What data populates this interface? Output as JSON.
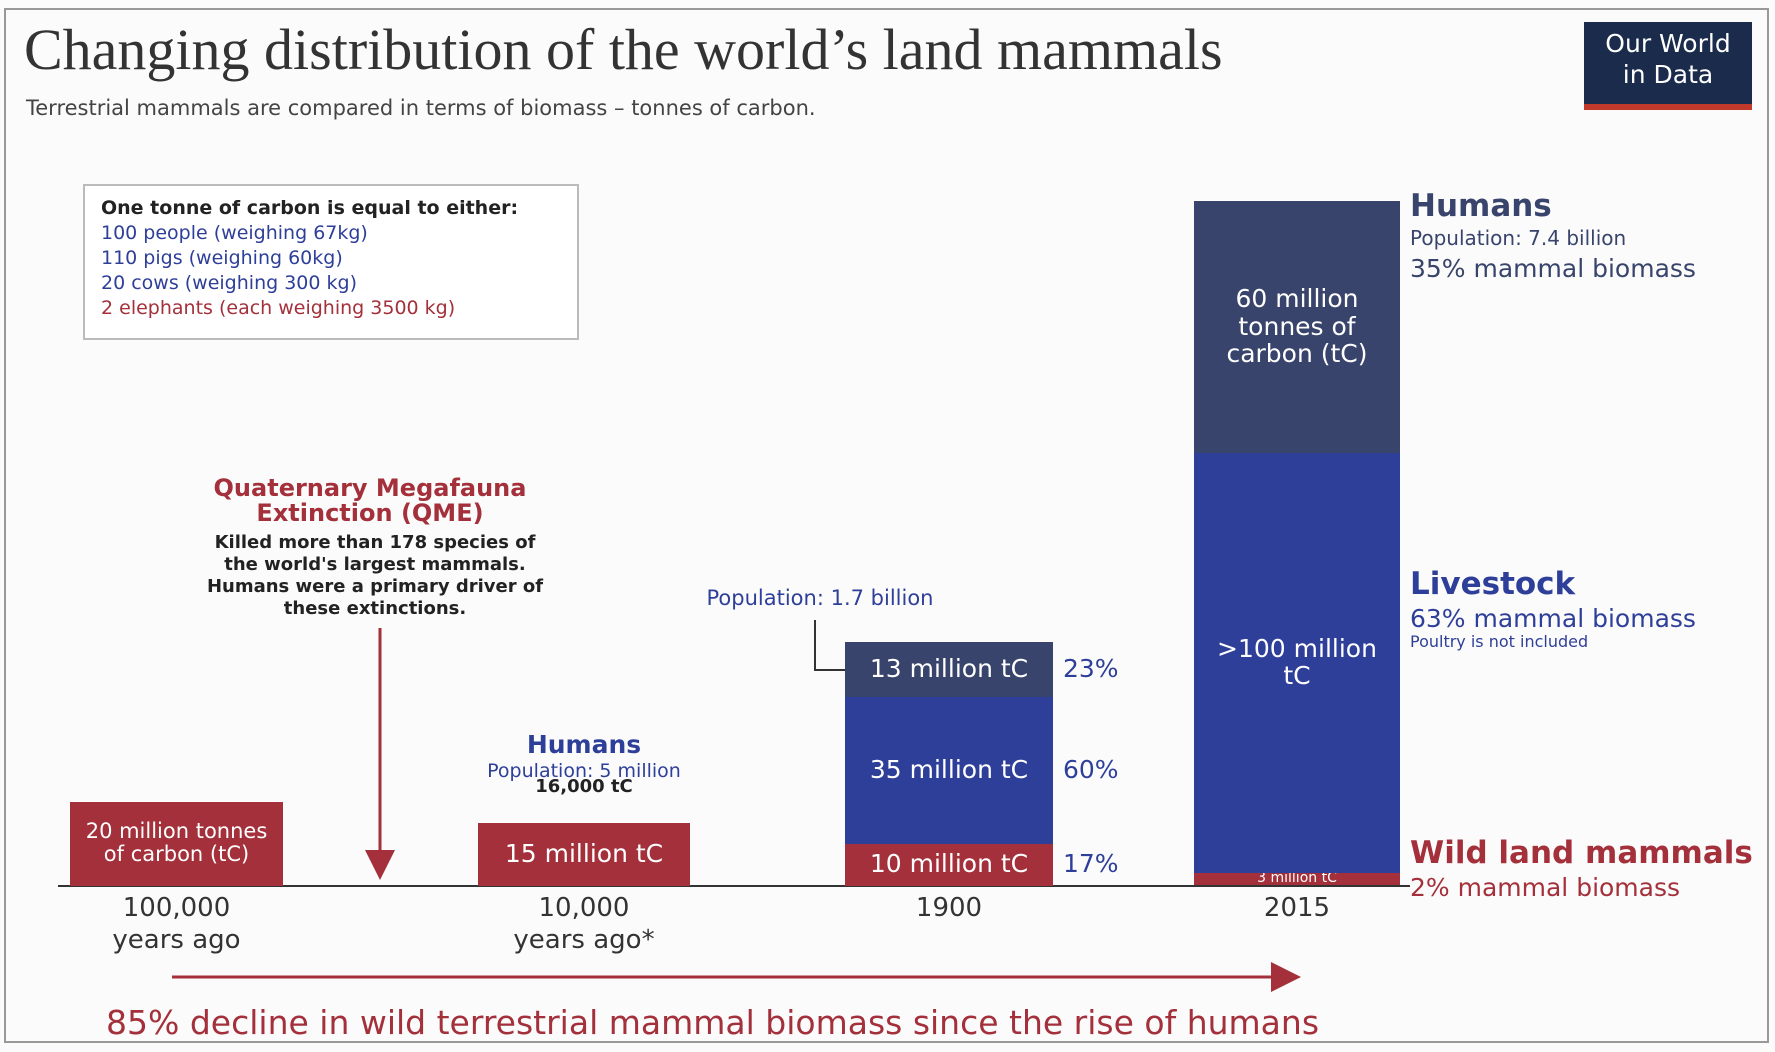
{
  "logo": [
    "Our World",
    "in Data"
  ],
  "info_box": {
    "title": "One tonne of carbon is equal to either:",
    "lines": [
      "100 people (weighing 67kg)",
      "110 pigs (weighing 60kg)",
      "20 cows (weighing 300 kg)",
      "2 elephants (each weighing 3500 kg)"
    ]
  },
  "annotations": {
    "qme_title": "Quaternary Megafauna Extinction (QME)",
    "qme_text": "Killed more than 178 species of the world's largest mammals. Humans were a primary driver of these extinctions.",
    "humans_label": "Humans",
    "population_10000": "Population: 5 million",
    "population_1900": "Population: 1.7 billion",
    "footer": "85% decline in wild terrestrial mammal biomass since the rise of humans"
  },
  "chart_data": {
    "type": "bar",
    "stacked": true,
    "title": "Changing distribution of the world’s land mammals",
    "subtitle": "Terrestrial mammals are compared in terms of biomass – tonnes of carbon.",
    "categories": [
      "100,000\nyears ago",
      "10,000\nyears ago*",
      "1900",
      "2015"
    ],
    "series": [
      {
        "name": "Wild land mammals",
        "color": "#a3303a",
        "values": [
          20,
          15,
          10,
          3
        ],
        "value_labels": [
          "20 million tonnes of carbon (tC)",
          "15 million tC",
          "10 million tC",
          "3 million tC"
        ],
        "shares": [
          null,
          null,
          17,
          null
        ],
        "share_labels": [
          null,
          null,
          "17%",
          null
        ],
        "details": [
          "2% mammal biomass"
        ]
      },
      {
        "name": "Livestock",
        "color": "#2e3f99",
        "values": [
          null,
          null,
          35,
          100
        ],
        "value_labels": [
          null,
          null,
          "35 million tC",
          ">100 million tC"
        ],
        "shares": [
          null,
          null,
          60,
          null
        ],
        "share_labels": [
          null,
          null,
          "60%",
          null
        ],
        "details": [
          "63% mammal biomass",
          "Poultry is not included"
        ]
      },
      {
        "name": "Humans",
        "color": "#38446b",
        "values": [
          null,
          0.016,
          13,
          60
        ],
        "value_labels": [
          null,
          "16,000 tC",
          "13 million tC",
          "60 million tonnes of carbon (tC)"
        ],
        "shares": [
          null,
          null,
          23,
          null
        ],
        "share_labels": [
          null,
          null,
          "23%",
          null
        ],
        "details": [
          "Population: 7.4 billion",
          "35% mammal biomass"
        ]
      }
    ]
  }
}
